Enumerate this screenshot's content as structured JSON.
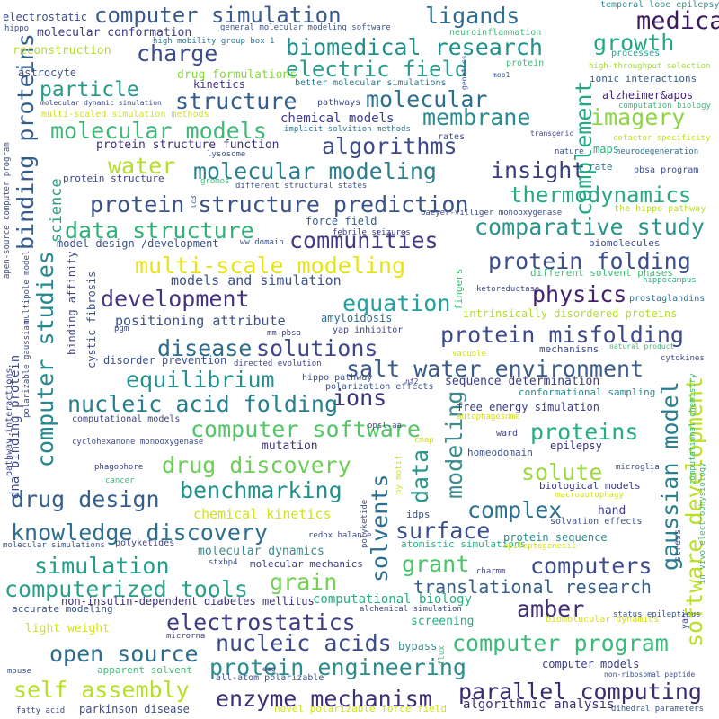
{
  "words": [
    {
      "text": "computer simulation",
      "color": "#3b5a8c"
    },
    {
      "text": "medical",
      "color": "#3b1a5e"
    },
    {
      "text": "biomedical research",
      "color": "#21908d"
    },
    {
      "text": "ligands",
      "color": "#2f6b8e"
    },
    {
      "text": "growth",
      "color": "#26a886"
    },
    {
      "text": "charge",
      "color": "#3a4b88"
    },
    {
      "text": "electric field",
      "color": "#2b9b8c"
    },
    {
      "text": "particle",
      "color": "#27998a"
    },
    {
      "text": "molecular",
      "color": "#2d6e8e"
    },
    {
      "text": "structure",
      "color": "#355c8c"
    },
    {
      "text": "imagery",
      "color": "#8fd646"
    },
    {
      "text": "membrane",
      "color": "#2a8c8e"
    },
    {
      "text": "molecular models",
      "color": "#3fb879"
    },
    {
      "text": "algorithms",
      "color": "#3d4b89"
    },
    {
      "text": "water",
      "color": "#b5de2c"
    },
    {
      "text": "molecular modeling",
      "color": "#2d7f8e"
    },
    {
      "text": "insight",
      "color": "#3b3e7d"
    },
    {
      "text": "thermodynamics",
      "color": "#25aa83"
    },
    {
      "text": "protein structure prediction",
      "color": "#3a5386"
    },
    {
      "text": "comparative study",
      "color": "#2a958b"
    },
    {
      "text": "data structure",
      "color": "#33b07c"
    },
    {
      "text": "communities",
      "color": "#443983"
    },
    {
      "text": "multi-scale modeling",
      "color": "#e6e419"
    },
    {
      "text": "protein folding",
      "color": "#3c4f8a"
    },
    {
      "text": "development",
      "color": "#463480"
    },
    {
      "text": "physics",
      "color": "#45216d"
    },
    {
      "text": "equation",
      "color": "#23a1a0"
    },
    {
      "text": "protein misfolding",
      "color": "#3e4a89"
    },
    {
      "text": "solutions",
      "color": "#3f4788"
    },
    {
      "text": "disease",
      "color": "#2f6c8e"
    },
    {
      "text": "salt water environment",
      "color": "#3b5b8c"
    },
    {
      "text": "equilibrium",
      "color": "#25918c"
    },
    {
      "text": "ions",
      "color": "#3b3577"
    },
    {
      "text": "nucleic acid folding",
      "color": "#277f8e"
    },
    {
      "text": "computer software",
      "color": "#55c667"
    },
    {
      "text": "proteins",
      "color": "#27ad81"
    },
    {
      "text": "drug discovery",
      "color": "#6ece58"
    },
    {
      "text": "solute",
      "color": "#9bd93c"
    },
    {
      "text": "benchmarking",
      "color": "#21918c"
    },
    {
      "text": "drug design",
      "color": "#365e8d"
    },
    {
      "text": "complex",
      "color": "#2c728e"
    },
    {
      "text": "knowledge discovery",
      "color": "#2e6f8e"
    },
    {
      "text": "surface",
      "color": "#3b4f8a"
    },
    {
      "text": "grant",
      "color": "#4dc36b"
    },
    {
      "text": "simulation",
      "color": "#1f9e89"
    },
    {
      "text": "computers",
      "color": "#3e4c8a"
    },
    {
      "text": "grain",
      "color": "#75d054"
    },
    {
      "text": "computerized tools",
      "color": "#2c9e89"
    },
    {
      "text": "translational research",
      "color": "#355f8d"
    },
    {
      "text": "amber",
      "color": "#3e2d73"
    },
    {
      "text": "electrostatics",
      "color": "#3e3c82"
    },
    {
      "text": "computer program",
      "color": "#3db97b"
    },
    {
      "text": "open source",
      "color": "#2b6d8e"
    },
    {
      "text": "nucleic acids",
      "color": "#3d4a89"
    },
    {
      "text": "protein engineering",
      "color": "#2b8c8e"
    },
    {
      "text": "self assembly",
      "color": "#b8de29"
    },
    {
      "text": "enzyme mechanism",
      "color": "#3f2f75"
    },
    {
      "text": "parallel computing",
      "color": "#3b2b6f"
    },
    {
      "text": "binding proteins",
      "color": "#355d8c"
    },
    {
      "text": "computer studies",
      "color": "#24888e"
    },
    {
      "text": "complement",
      "color": "#24a885"
    },
    {
      "text": "gaussian model",
      "color": "#2a7f8e"
    },
    {
      "text": "software development",
      "color": "#bcdf27"
    },
    {
      "text": "solvents",
      "color": "#2d6d8e"
    },
    {
      "text": "modeling",
      "color": "#3d8c8e"
    },
    {
      "text": "data",
      "color": "#29988b"
    },
    {
      "text": "science",
      "color": "#2aa186"
    },
    {
      "text": "dna binding protein",
      "color": "#3d4a86"
    },
    {
      "text": "electrostatic",
      "color": "#3c4f8a"
    },
    {
      "text": "hippo",
      "color": "#3d5086"
    },
    {
      "text": "molecular conformation",
      "color": "#3e3b82"
    },
    {
      "text": "reconstruction",
      "color": "#b5de2c"
    },
    {
      "text": "general molecular modeling software",
      "color": "#3a528b"
    },
    {
      "text": "high mobility group box 1",
      "color": "#2b758e"
    },
    {
      "text": "neuroinflammation",
      "color": "#3fba78"
    },
    {
      "text": "temporal lobe epilepsy",
      "color": "#3a8d8c"
    },
    {
      "text": "drug formulations",
      "color": "#8bd646"
    },
    {
      "text": "astrocyte",
      "color": "#3f548b"
    },
    {
      "text": "kinetics",
      "color": "#463480"
    },
    {
      "text": "better molecular simulations",
      "color": "#2a788e"
    },
    {
      "text": "processes",
      "color": "#23a59a"
    },
    {
      "text": "high-throughput selection",
      "color": "#a7db35"
    },
    {
      "text": "ionic interactions",
      "color": "#355c8c"
    },
    {
      "text": "protein",
      "color": "#3fba78"
    },
    {
      "text": "mob1",
      "color": "#3b528b"
    },
    {
      "text": "molecular dynamic simulation",
      "color": "#3e4a89"
    },
    {
      "text": "multi-scaled simulation methods",
      "color": "#d2e21b"
    },
    {
      "text": "pathways",
      "color": "#3a528b"
    },
    {
      "text": "alzheimer&apos",
      "color": "#45237a"
    },
    {
      "text": "computation biology",
      "color": "#3fba78"
    },
    {
      "text": "chemical models",
      "color": "#3e3d82"
    },
    {
      "text": "implicit solvition methods",
      "color": "#2d718e"
    },
    {
      "text": "rates",
      "color": "#3e4a89"
    },
    {
      "text": "cofactor specificity",
      "color": "#c5e021"
    },
    {
      "text": "transgenic",
      "color": "#414487"
    },
    {
      "text": "maps",
      "color": "#29af7f"
    },
    {
      "text": "neurodegeneration",
      "color": "#2e6e8e"
    },
    {
      "text": "protein structure function",
      "color": "#3e2f75"
    },
    {
      "text": "lysosome",
      "color": "#3b528b"
    },
    {
      "text": "nature",
      "color": "#3a548c"
    },
    {
      "text": "rate",
      "color": "#2e6e8e"
    },
    {
      "text": "protein structure",
      "color": "#3f4788"
    },
    {
      "text": "gromos",
      "color": "#3cbb75"
    },
    {
      "text": "different structural states",
      "color": "#3b528b"
    },
    {
      "text": "pbsa program",
      "color": "#3b528b"
    },
    {
      "text": "the hippo pathway",
      "color": "#b8de29"
    },
    {
      "text": "baeyer-villiger monooxygenase",
      "color": "#3e4a89"
    },
    {
      "text": "force field",
      "color": "#355c8c"
    },
    {
      "text": "febrile seizures",
      "color": "#3e3c82"
    },
    {
      "text": "ww domain",
      "color": "#3b528b"
    },
    {
      "text": "model design /development",
      "color": "#3a548c"
    },
    {
      "text": "biomolecules",
      "color": "#3e4a89"
    },
    {
      "text": "different solvent phases",
      "color": "#3fba78"
    },
    {
      "text": "models and simulation",
      "color": "#3b518b"
    },
    {
      "text": "hippocampus",
      "color": "#29af7f"
    },
    {
      "text": "ketoreductase",
      "color": "#3e4a89"
    },
    {
      "text": "prostaglandins",
      "color": "#2e6e8e"
    },
    {
      "text": "intrinsically disordered proteins",
      "color": "#b5de2c"
    },
    {
      "text": "positioning attribute",
      "color": "#3e5387"
    },
    {
      "text": "amyloidosis",
      "color": "#2e6e8e"
    },
    {
      "text": "pgm",
      "color": "#3e4a89"
    },
    {
      "text": "mm-pbsa",
      "color": "#3e3d82"
    },
    {
      "text": "yap inhibitor",
      "color": "#414487"
    },
    {
      "text": "mechanisms",
      "color": "#3e4a89"
    },
    {
      "text": "natural product",
      "color": "#3fba78"
    },
    {
      "text": "disorder prevention",
      "color": "#3b528b"
    },
    {
      "text": "directed evolution",
      "color": "#414487"
    },
    {
      "text": "vacuole",
      "color": "#d2e21b"
    },
    {
      "text": "cytokines",
      "color": "#3e4a89"
    },
    {
      "text": "hippo pathway",
      "color": "#3b528b"
    },
    {
      "text": "nf2",
      "color": "#414487"
    },
    {
      "text": "sequence determination",
      "color": "#3b3c82"
    },
    {
      "text": "conformational sampling",
      "color": "#2e8a8e"
    },
    {
      "text": "polarization effects",
      "color": "#3b528b"
    },
    {
      "text": "computational models",
      "color": "#414487"
    },
    {
      "text": "free energy simulation",
      "color": "#3b3c82"
    },
    {
      "text": "autophagosome",
      "color": "#d2e21b"
    },
    {
      "text": "opsl-aa",
      "color": "#3e4a89"
    },
    {
      "text": "mutation",
      "color": "#3b3577"
    },
    {
      "text": "ward",
      "color": "#414487"
    },
    {
      "text": "epilepsy",
      "color": "#3a3580"
    },
    {
      "text": "cyclohexanone monooxygenase",
      "color": "#3e4a89"
    },
    {
      "text": "cmap",
      "color": "#d2e21b"
    },
    {
      "text": "homeodomain",
      "color": "#3b528b"
    },
    {
      "text": "phagophore",
      "color": "#414487"
    },
    {
      "text": "microglia",
      "color": "#3e4a89"
    },
    {
      "text": "cancer",
      "color": "#3fba78"
    },
    {
      "text": "biological models",
      "color": "#3b3c82"
    },
    {
      "text": "macroautophagy",
      "color": "#d2e21b"
    },
    {
      "text": "hand",
      "color": "#3e3c82"
    },
    {
      "text": "chemical kinetics",
      "color": "#d2e21b"
    },
    {
      "text": "idps",
      "color": "#3b528b"
    },
    {
      "text": "solvation effects",
      "color": "#3b528b"
    },
    {
      "text": "protein sequence",
      "color": "#2e8a8e"
    },
    {
      "text": "molecular dynamics",
      "color": "#3b8c8c"
    },
    {
      "text": "atomistic simulations",
      "color": "#29af7f"
    },
    {
      "text": "epileptogenesis",
      "color": "#d2e21b"
    },
    {
      "text": "redox balance",
      "color": "#3e4a89"
    },
    {
      "text": "molecular simulations",
      "color": "#3b528b"
    },
    {
      "text": "polyketides",
      "color": "#414487"
    },
    {
      "text": "stxbp4",
      "color": "#3b528b"
    },
    {
      "text": "molecular mechanics",
      "color": "#3b3c82"
    },
    {
      "text": "charmm",
      "color": "#414487"
    },
    {
      "text": "non-insulin-dependent diabetes mellitus",
      "color": "#3e2f75"
    },
    {
      "text": "computational biology",
      "color": "#29af7f"
    },
    {
      "text": "accurate modeling",
      "color": "#3b528b"
    },
    {
      "text": "alchemical simulation",
      "color": "#3e4a89"
    },
    {
      "text": "status epilepticus",
      "color": "#3b528b"
    },
    {
      "text": "light weight",
      "color": "#d2e21b"
    },
    {
      "text": "screening",
      "color": "#29af7f"
    },
    {
      "text": "biomolucular dynamics",
      "color": "#d2e21b"
    },
    {
      "text": "microrna",
      "color": "#414487"
    },
    {
      "text": "bypass",
      "color": "#3b8c8c"
    },
    {
      "text": "computer models",
      "color": "#3b3c82"
    },
    {
      "text": "non-ribosomal peptide",
      "color": "#3b528b"
    },
    {
      "text": "mouse",
      "color": "#3b528b"
    },
    {
      "text": "apparent solvent",
      "color": "#3fba78"
    },
    {
      "text": "eeg",
      "color": "#3e4a89"
    },
    {
      "text": "all-atom polarizable",
      "color": "#3b528b"
    },
    {
      "text": "algorithmic analysis",
      "color": "#3e2f75"
    },
    {
      "text": "fatty acid",
      "color": "#3e4a89"
    },
    {
      "text": "parkinson disease",
      "color": "#3e4a89"
    },
    {
      "text": "novel polarizable force field",
      "color": "#d2e21b"
    },
    {
      "text": "dihedral parameters",
      "color": "#3b528b"
    },
    {
      "text": "apen-source computer program",
      "color": "#3e4a89"
    },
    {
      "text": "lc3",
      "color": "#3b528b"
    },
    {
      "text": "multipole model",
      "color": "#3e4a89"
    },
    {
      "text": "polarizable gaussian",
      "color": "#3e4a89"
    },
    {
      "text": "pathway interactions",
      "color": "#3e4a89"
    },
    {
      "text": "cystic fibrosis",
      "color": "#3b528b"
    },
    {
      "text": "binding affinity",
      "color": "#3e4a89"
    },
    {
      "text": "fingers",
      "color": "#3fba78"
    },
    {
      "text": "genetics",
      "color": "#3e4a89"
    },
    {
      "text": "py motif",
      "color": "#d2e21b"
    },
    {
      "text": "polyketide",
      "color": "#3b528b"
    },
    {
      "text": "flux",
      "color": "#3fba78"
    },
    {
      "text": "stress",
      "color": "#3b528b"
    },
    {
      "text": "computational chemistry",
      "color": "#3fba78"
    },
    {
      "text": "in vivo electrophysiology",
      "color": "#3fba78"
    },
    {
      "text": "yap",
      "color": "#3b528b"
    }
  ]
}
